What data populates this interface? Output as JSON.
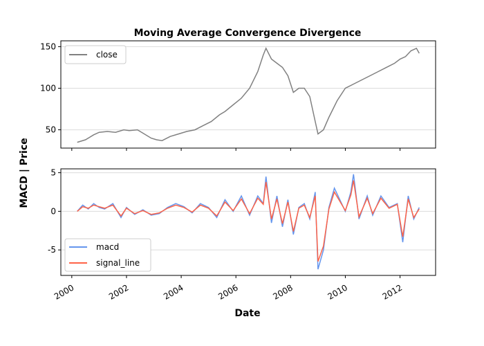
{
  "chart_data": [
    {
      "type": "line",
      "title": "Moving Average Convergence Divergence",
      "xlabel": "",
      "ylabel": "",
      "shared_ylabel": "MACD | Price",
      "xlim": [
        1999.6,
        2013.3
      ],
      "ylim": [
        28,
        157
      ],
      "yticks": [
        50,
        100,
        150
      ],
      "grid": "y",
      "legend_position": "top-left",
      "colors": {
        "close": "#808080"
      },
      "x": [
        2000.2,
        2000.5,
        2000.8,
        2001.0,
        2001.3,
        2001.6,
        2001.9,
        2002.1,
        2002.4,
        2002.6,
        2002.9,
        2003.1,
        2003.3,
        2003.6,
        2003.9,
        2004.2,
        2004.5,
        2004.8,
        2005.1,
        2005.4,
        2005.6,
        2005.9,
        2006.2,
        2006.5,
        2006.8,
        2007.0,
        2007.1,
        2007.3,
        2007.5,
        2007.7,
        2007.9,
        2008.1,
        2008.3,
        2008.5,
        2008.7,
        2008.9,
        2009.0,
        2009.2,
        2009.4,
        2009.7,
        2010.0,
        2010.3,
        2010.6,
        2010.9,
        2011.2,
        2011.5,
        2011.8,
        2012.0,
        2012.2,
        2012.4,
        2012.6,
        2012.7
      ],
      "series": [
        {
          "name": "close",
          "values": [
            35,
            38,
            44,
            47,
            48,
            47,
            50,
            49,
            50,
            46,
            40,
            38,
            37,
            42,
            45,
            48,
            50,
            55,
            60,
            68,
            72,
            80,
            88,
            100,
            120,
            140,
            148,
            135,
            130,
            125,
            115,
            95,
            100,
            100,
            90,
            60,
            45,
            50,
            65,
            85,
            100,
            105,
            110,
            115,
            120,
            125,
            130,
            135,
            138,
            145,
            148,
            142
          ]
        }
      ]
    },
    {
      "type": "line",
      "title": "",
      "xlabel": "Date",
      "ylabel": "",
      "xlim": [
        1999.6,
        2013.3
      ],
      "ylim": [
        -8.3,
        5.5
      ],
      "yticks": [
        -5,
        0,
        5
      ],
      "xticks": [
        "2000",
        "2002",
        "2004",
        "2006",
        "2008",
        "2010",
        "2012"
      ],
      "xtick_values": [
        2000,
        2002,
        2004,
        2006,
        2008,
        2010,
        2012
      ],
      "grid": "y",
      "legend_position": "bottom-left",
      "colors": {
        "macd": "#6495ED",
        "signal_line": "#FF6347"
      },
      "x": [
        2000.2,
        2000.4,
        2000.6,
        2000.8,
        2001.0,
        2001.2,
        2001.5,
        2001.8,
        2002.0,
        2002.3,
        2002.6,
        2002.9,
        2003.2,
        2003.5,
        2003.8,
        2004.1,
        2004.4,
        2004.7,
        2005.0,
        2005.3,
        2005.6,
        2005.9,
        2006.2,
        2006.5,
        2006.8,
        2007.0,
        2007.1,
        2007.3,
        2007.5,
        2007.7,
        2007.9,
        2008.1,
        2008.3,
        2008.5,
        2008.7,
        2008.9,
        2009.0,
        2009.2,
        2009.4,
        2009.6,
        2009.8,
        2010.0,
        2010.2,
        2010.3,
        2010.5,
        2010.8,
        2011.0,
        2011.3,
        2011.6,
        2011.9,
        2012.1,
        2012.3,
        2012.5,
        2012.7
      ],
      "series": [
        {
          "name": "macd",
          "values": [
            0,
            0.8,
            0.3,
            1.0,
            0.5,
            0.3,
            1.0,
            -0.8,
            0.5,
            -0.4,
            0.2,
            -0.5,
            -0.3,
            0.5,
            1.0,
            0.6,
            -0.2,
            1.0,
            0.5,
            -0.8,
            1.5,
            0.0,
            2.0,
            -0.5,
            2.0,
            1.0,
            4.5,
            -1.5,
            2.0,
            -2.0,
            1.5,
            -3.0,
            0.5,
            1.0,
            -1.0,
            2.5,
            -7.5,
            -5.0,
            0.5,
            3.0,
            1.5,
            0.0,
            2.5,
            4.8,
            -1.0,
            2.0,
            -0.5,
            2.0,
            0.5,
            1.0,
            -4.0,
            2.0,
            -1.0,
            0.5
          ]
        },
        {
          "name": "signal_line",
          "values": [
            0,
            0.6,
            0.4,
            0.8,
            0.6,
            0.4,
            0.8,
            -0.6,
            0.4,
            -0.3,
            0.1,
            -0.4,
            -0.2,
            0.4,
            0.8,
            0.5,
            -0.1,
            0.8,
            0.4,
            -0.6,
            1.2,
            0.1,
            1.6,
            -0.3,
            1.7,
            0.9,
            3.8,
            -1.0,
            1.6,
            -1.6,
            1.2,
            -2.6,
            0.4,
            0.8,
            -0.8,
            2.0,
            -6.5,
            -4.5,
            0.3,
            2.5,
            1.3,
            0.1,
            2.1,
            4.0,
            -0.7,
            1.7,
            -0.3,
            1.7,
            0.4,
            0.9,
            -3.3,
            1.6,
            -0.8,
            0.3
          ]
        }
      ]
    }
  ]
}
